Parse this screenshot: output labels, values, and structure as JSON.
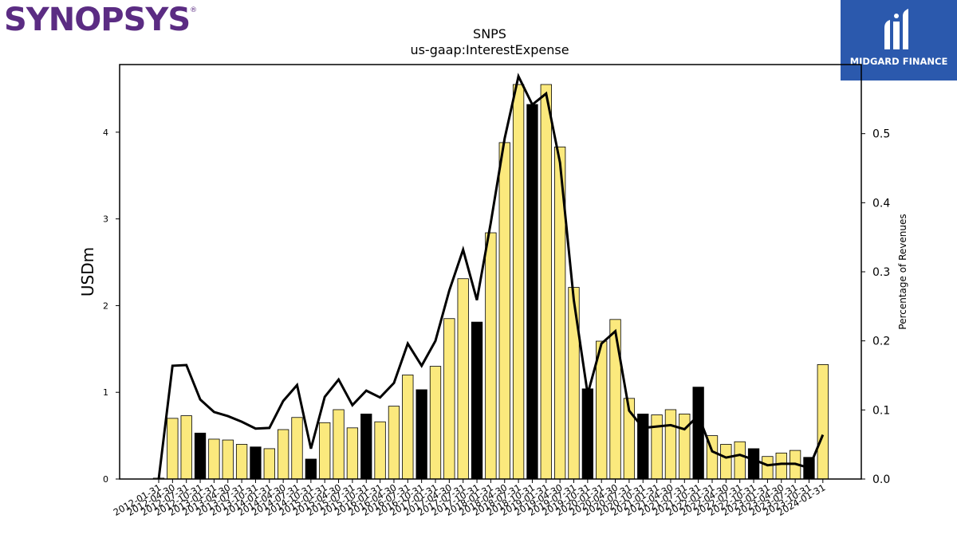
{
  "brand_left": {
    "name": "SYNOPSYS",
    "mark": "®"
  },
  "brand_right": {
    "name": "MIDGARD FINANCE"
  },
  "chart_data": {
    "type": "bar",
    "title": "SNPS",
    "subtitle": "us-gaap:InterestExpense",
    "ylabel": "USDm",
    "y2label": "Percentage of Revenues",
    "ylim": [
      0,
      4.78
    ],
    "y2lim": [
      0,
      0.6
    ],
    "yticks": [
      0,
      1,
      2,
      3,
      4
    ],
    "y2ticks": [
      0.0,
      0.1,
      0.2,
      0.3,
      0.4,
      0.5
    ],
    "grid": false,
    "colors": {
      "quarter": "#fbe97d",
      "fiscal_q4": "#000000",
      "line": "#000000"
    },
    "categories": [
      "2012-01-31",
      "2012-04-30",
      "2012-07-31",
      "2012-10-31",
      "2013-01-31",
      "2013-04-30",
      "2013-07-31",
      "2013-10-31",
      "2014-01-31",
      "2014-04-30",
      "2014-07-31",
      "2014-10-31",
      "2015-01-31",
      "2015-04-30",
      "2015-07-31",
      "2015-10-31",
      "2016-01-31",
      "2016-04-30",
      "2016-07-31",
      "2016-10-31",
      "2017-01-31",
      "2017-04-30",
      "2017-07-31",
      "2017-10-31",
      "2018-01-31",
      "2018-04-30",
      "2018-07-31",
      "2018-10-31",
      "2019-01-31",
      "2019-04-30",
      "2019-07-31",
      "2019-10-31",
      "2020-01-31",
      "2020-04-30",
      "2020-07-31",
      "2020-10-31",
      "2021-01-31",
      "2021-04-30",
      "2021-07-31",
      "2021-10-31",
      "2022-01-31",
      "2022-04-30",
      "2022-07-31",
      "2022-10-31",
      "2023-01-31",
      "2023-04-30",
      "2023-07-31",
      "2023-10-31",
      "2024-01-31"
    ],
    "tick_labels": [
      "2012-01-31",
      "2012-04-30",
      "2012-07-31",
      "2012-10-31",
      "2013-01-31",
      "2013-04-30",
      "2013-07-31",
      "2013-10-31",
      "2014-01-31",
      "2014-04-30",
      "2014-07-31",
      "2014-10-31",
      "2015-01-31",
      "2015-04-30",
      "2015-07-31",
      "2015-10-31",
      "2016-01-31",
      "2016-04-30",
      "2016-07-31",
      "2016-10-31",
      "2017-01-31",
      "2017-04-30",
      "2017-07-31",
      "2017-10-31",
      "2018-01-31",
      "2018-04-30",
      "2018-07-31",
      "2018-10-31",
      "2019-01-31",
      "2019-04-30",
      "2019-07-31",
      "2019-10-31",
      "2020-01-31",
      "2020-04-30",
      "2020-07-31",
      "2020-10-31",
      "2021-01-31",
      "2021-04-30",
      "2021-07-31",
      "2021-10-31",
      "2022-01-31",
      "2022-04-30",
      "2022-07-31",
      "2022-10-31",
      "2023-01-31",
      "2023-04-30",
      "2023-07-31",
      "2023-10-31",
      "2024-01-31"
    ],
    "values": [
      0.01,
      0.7,
      0.73,
      0.53,
      0.46,
      0.45,
      0.4,
      0.37,
      0.35,
      0.57,
      0.71,
      0.23,
      0.65,
      0.8,
      0.59,
      0.75,
      0.66,
      0.84,
      1.2,
      1.03,
      1.3,
      1.85,
      2.31,
      1.81,
      2.84,
      3.88,
      4.55,
      4.32,
      4.55,
      3.83,
      2.21,
      1.04,
      1.59,
      1.84,
      0.93,
      0.75,
      0.74,
      0.8,
      0.75,
      1.06,
      0.5,
      0.4,
      0.43,
      0.35,
      0.26,
      0.3,
      0.33,
      0.25,
      1.32
    ],
    "highlight": [
      false,
      false,
      false,
      true,
      false,
      false,
      false,
      true,
      false,
      false,
      false,
      true,
      false,
      false,
      false,
      true,
      false,
      false,
      false,
      true,
      false,
      false,
      false,
      true,
      false,
      false,
      false,
      true,
      false,
      false,
      false,
      true,
      false,
      false,
      false,
      true,
      false,
      false,
      false,
      true,
      false,
      false,
      false,
      true,
      false,
      false,
      false,
      true,
      false
    ],
    "pct_revenue": [
      0.0,
      0.164,
      0.165,
      0.115,
      0.097,
      0.091,
      0.083,
      0.073,
      0.074,
      0.113,
      0.136,
      0.044,
      0.119,
      0.144,
      0.107,
      0.128,
      0.118,
      0.139,
      0.196,
      0.164,
      0.2,
      0.273,
      0.332,
      0.259,
      0.371,
      0.493,
      0.583,
      0.542,
      0.558,
      0.458,
      0.259,
      0.123,
      0.196,
      0.214,
      0.099,
      0.074,
      0.076,
      0.078,
      0.072,
      0.092,
      0.04,
      0.031,
      0.035,
      0.028,
      0.02,
      0.022,
      0.022,
      0.016,
      0.064
    ]
  }
}
